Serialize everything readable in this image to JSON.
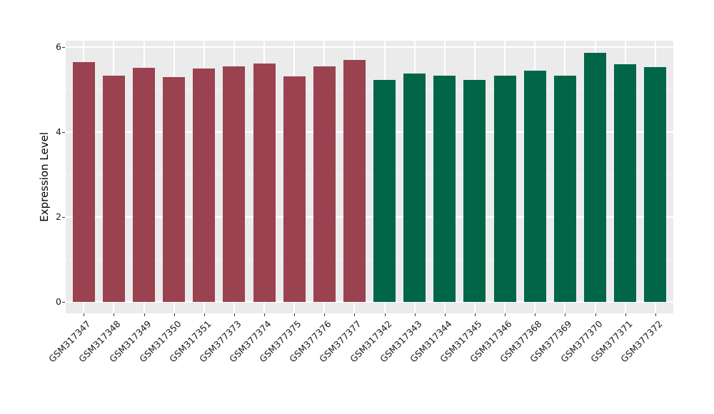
{
  "figure": {
    "ylabel": "Expression Level",
    "colors": {
      "panel_bg": "#EBEBEB",
      "grid_major": "#FFFFFF",
      "grid_minor": "#F5F5F5",
      "tick": "#333333",
      "text": "#1A1A1A",
      "group_red": "#9A4250",
      "group_green": "#016648"
    }
  },
  "chart_data": {
    "type": "bar",
    "title": "",
    "xlabel": "",
    "ylabel": "Expression Level",
    "ylim": [
      -0.27,
      6.15
    ],
    "yticks": [
      0,
      2,
      4,
      6
    ],
    "yticks_minor": [
      1,
      3,
      5
    ],
    "grid": "on",
    "legend": "none",
    "panel_background": "#EBEBEB",
    "categories": [
      "GSM317347",
      "GSM317348",
      "GSM317349",
      "GSM317350",
      "GSM317351",
      "GSM377373",
      "GSM377374",
      "GSM377375",
      "GSM377376",
      "GSM377377",
      "GSM317342",
      "GSM317343",
      "GSM317344",
      "GSM317345",
      "GSM317346",
      "GSM377368",
      "GSM377369",
      "GSM377370",
      "GSM377371",
      "GSM377372"
    ],
    "values": [
      5.65,
      5.33,
      5.51,
      5.3,
      5.5,
      5.55,
      5.62,
      5.31,
      5.55,
      5.69,
      5.22,
      5.37,
      5.32,
      5.22,
      5.33,
      5.44,
      5.33,
      5.87,
      5.6,
      5.53
    ],
    "bar_colors": [
      "#9A4250",
      "#9A4250",
      "#9A4250",
      "#9A4250",
      "#9A4250",
      "#9A4250",
      "#9A4250",
      "#9A4250",
      "#9A4250",
      "#9A4250",
      "#016648",
      "#016648",
      "#016648",
      "#016648",
      "#016648",
      "#016648",
      "#016648",
      "#016648",
      "#016648",
      "#016648"
    ],
    "groups": [
      "red",
      "red",
      "red",
      "red",
      "red",
      "red",
      "red",
      "red",
      "red",
      "red",
      "green",
      "green",
      "green",
      "green",
      "green",
      "green",
      "green",
      "green",
      "green",
      "green"
    ]
  }
}
